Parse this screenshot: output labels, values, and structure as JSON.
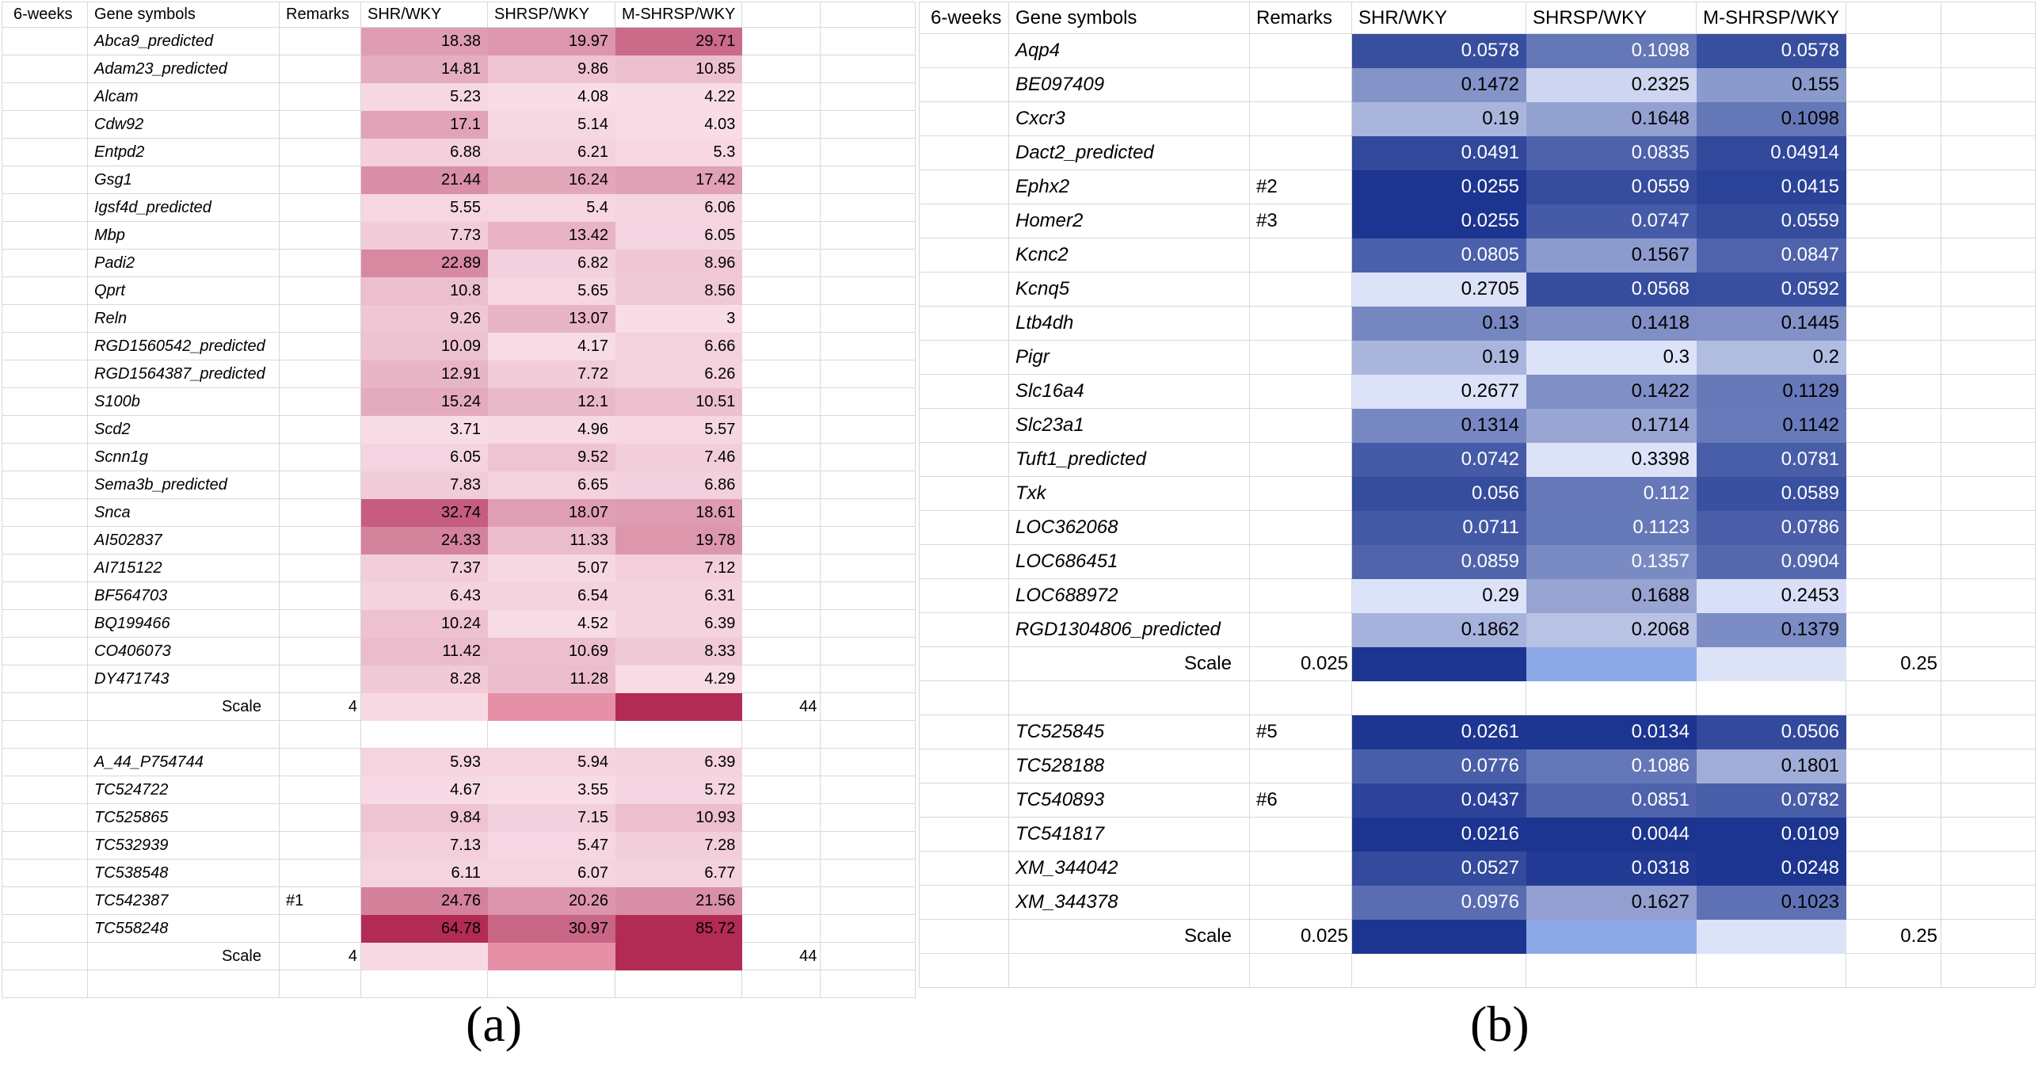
{
  "chart_data": [
    {
      "type": "heatmap",
      "panel_label": "(a)",
      "palette": "pink-red",
      "headers": [
        "6-weeks",
        "Gene symbols",
        "Remarks",
        "SHR/WKY",
        "SHRSP/WKY",
        "M-SHRSP/WKY"
      ],
      "scale": {
        "label": "Scale",
        "min": 4,
        "max": 44,
        "min_label": "4",
        "max_label": "44",
        "min_color": "#f8dde7",
        "max_color": "#b22b55",
        "legend_colors": [
          "#f7d9e3",
          "#e690a8",
          "#b22b55"
        ]
      },
      "blocks": [
        {
          "rows": [
            {
              "gene": "Abca9_predicted",
              "values": [
                18.38,
                19.97,
                29.71
              ]
            },
            {
              "gene": "Adam23_predicted",
              "values": [
                14.81,
                9.86,
                10.85
              ]
            },
            {
              "gene": "Alcam",
              "values": [
                5.23,
                4.08,
                4.22
              ]
            },
            {
              "gene": "Cdw92",
              "values": [
                17.1,
                5.14,
                4.03
              ]
            },
            {
              "gene": "Entpd2",
              "values": [
                6.88,
                6.21,
                5.3
              ]
            },
            {
              "gene": "Gsg1",
              "values": [
                21.44,
                16.24,
                17.42
              ]
            },
            {
              "gene": "Igsf4d_predicted",
              "values": [
                5.55,
                5.4,
                6.06
              ]
            },
            {
              "gene": "Mbp",
              "values": [
                7.73,
                13.42,
                6.05
              ]
            },
            {
              "gene": "Padi2",
              "values": [
                22.89,
                6.82,
                8.96
              ]
            },
            {
              "gene": "Qprt",
              "values": [
                10.8,
                5.65,
                8.56
              ]
            },
            {
              "gene": "Reln",
              "values": [
                9.26,
                13.07,
                3
              ]
            },
            {
              "gene": "RGD1560542_predicted",
              "values": [
                10.09,
                4.17,
                6.66
              ]
            },
            {
              "gene": "RGD1564387_predicted",
              "values": [
                12.91,
                7.72,
                6.26
              ]
            },
            {
              "gene": "S100b",
              "values": [
                15.24,
                12.1,
                10.51
              ]
            },
            {
              "gene": "Scd2",
              "values": [
                3.71,
                4.96,
                5.57
              ]
            },
            {
              "gene": "Scnn1g",
              "values": [
                6.05,
                9.52,
                7.46
              ]
            },
            {
              "gene": "Sema3b_predicted",
              "values": [
                7.83,
                6.65,
                6.86
              ]
            },
            {
              "gene": "Snca",
              "values": [
                32.74,
                18.07,
                18.61
              ]
            },
            {
              "gene": "AI502837",
              "values": [
                24.33,
                11.33,
                19.78
              ]
            },
            {
              "gene": "AI715122",
              "values": [
                7.37,
                5.07,
                7.12
              ]
            },
            {
              "gene": "BF564703",
              "values": [
                6.43,
                6.54,
                6.31
              ]
            },
            {
              "gene": "BQ199466",
              "values": [
                10.24,
                4.52,
                6.39
              ]
            },
            {
              "gene": "CO406073",
              "values": [
                11.42,
                10.69,
                8.33
              ]
            },
            {
              "gene": "DY471743",
              "values": [
                8.28,
                11.28,
                4.29
              ]
            }
          ]
        },
        {
          "rows": [
            {
              "gene": "A_44_P754744",
              "values": [
                5.93,
                5.94,
                6.39
              ]
            },
            {
              "gene": "TC524722",
              "values": [
                4.67,
                3.55,
                5.72
              ]
            },
            {
              "gene": "TC525865",
              "values": [
                9.84,
                7.15,
                10.93
              ]
            },
            {
              "gene": "TC532939",
              "values": [
                7.13,
                5.47,
                7.28
              ]
            },
            {
              "gene": "TC538548",
              "values": [
                6.11,
                6.07,
                6.77
              ]
            },
            {
              "gene": "TC542387",
              "remark": "#1",
              "values": [
                24.76,
                20.26,
                21.56
              ]
            },
            {
              "gene": "TC558248",
              "values": [
                64.78,
                30.97,
                85.72
              ]
            }
          ]
        }
      ]
    },
    {
      "type": "heatmap",
      "panel_label": "(b)",
      "palette": "blue",
      "headers": [
        "6-weeks",
        "Gene symbols",
        "Remarks",
        "SHR/WKY",
        "SHRSP/WKY",
        "M-SHRSP/WKY"
      ],
      "scale": {
        "label": "Scale",
        "min": 0.025,
        "max": 0.25,
        "min_label": "0.025",
        "max_label": "0.25",
        "min_color": "#1c3590",
        "max_color": "#dce3f8",
        "legend_colors": [
          "#1c3590",
          "#8ea9e8",
          "#dce3f8"
        ]
      },
      "blocks": [
        {
          "rows": [
            {
              "gene": "Aqp4",
              "values": [
                0.0578,
                0.1098,
                0.0578
              ],
              "white": [
                1,
                1,
                1
              ]
            },
            {
              "gene": "BE097409",
              "values": [
                0.1472,
                0.2325,
                0.155
              ],
              "white": [
                0,
                0,
                0
              ]
            },
            {
              "gene": "Cxcr3",
              "values": [
                0.19,
                0.1648,
                0.1098
              ],
              "white": [
                0,
                0,
                0
              ]
            },
            {
              "gene": "Dact2_predicted",
              "values": [
                0.0491,
                0.0835,
                0.04914
              ],
              "white": [
                1,
                1,
                1
              ]
            },
            {
              "gene": "Ephx2",
              "remark": "#2",
              "values": [
                0.0255,
                0.0559,
                0.0415
              ],
              "white": [
                1,
                1,
                1
              ]
            },
            {
              "gene": "Homer2",
              "remark": "#3",
              "values": [
                0.0255,
                0.0747,
                0.0559
              ],
              "white": [
                1,
                1,
                1
              ]
            },
            {
              "gene": "Kcnc2",
              "values": [
                0.0805,
                0.1567,
                0.0847
              ],
              "white": [
                1,
                0,
                1
              ]
            },
            {
              "gene": "Kcnq5",
              "values": [
                0.2705,
                0.0568,
                0.0592
              ],
              "white": [
                0,
                1,
                1
              ]
            },
            {
              "gene": "Ltb4dh",
              "values": [
                0.13,
                0.1418,
                0.1445
              ],
              "white": [
                0,
                0,
                0
              ]
            },
            {
              "gene": "Pigr",
              "values": [
                0.19,
                0.3,
                0.2
              ],
              "white": [
                0,
                0,
                0
              ]
            },
            {
              "gene": "Slc16a4",
              "values": [
                0.2677,
                0.1422,
                0.1129
              ],
              "white": [
                0,
                0,
                0
              ]
            },
            {
              "gene": "Slc23a1",
              "values": [
                0.1314,
                0.1714,
                0.1142
              ],
              "white": [
                0,
                0,
                0
              ]
            },
            {
              "gene": "Tuft1_predicted",
              "values": [
                0.0742,
                0.3398,
                0.0781
              ],
              "white": [
                1,
                0,
                1
              ]
            },
            {
              "gene": "Txk",
              "values": [
                0.056,
                0.112,
                0.0589
              ],
              "white": [
                1,
                1,
                1
              ]
            },
            {
              "gene": "LOC362068",
              "values": [
                0.0711,
                0.1123,
                0.0786
              ],
              "white": [
                1,
                1,
                1
              ]
            },
            {
              "gene": "LOC686451",
              "values": [
                0.0859,
                0.1357,
                0.0904
              ],
              "white": [
                1,
                1,
                1
              ]
            },
            {
              "gene": "LOC688972",
              "values": [
                0.29,
                0.1688,
                0.2453
              ],
              "white": [
                0,
                0,
                0
              ]
            },
            {
              "gene": "RGD1304806_predicted",
              "values": [
                0.1862,
                0.2068,
                0.1379
              ],
              "white": [
                0,
                0,
                0
              ]
            }
          ]
        },
        {
          "rows": [
            {
              "gene": "TC525845",
              "remark": "#5",
              "values": [
                0.0261,
                0.0134,
                0.0506
              ],
              "white": [
                1,
                1,
                1
              ]
            },
            {
              "gene": "TC528188",
              "values": [
                0.0776,
                0.1086,
                0.1801
              ],
              "white": [
                1,
                1,
                0
              ]
            },
            {
              "gene": "TC540893",
              "remark": "#6",
              "values": [
                0.0437,
                0.0851,
                0.0782
              ],
              "white": [
                1,
                1,
                1
              ]
            },
            {
              "gene": "TC541817",
              "values": [
                0.0216,
                0.0044,
                0.0109
              ],
              "white": [
                1,
                1,
                1
              ]
            },
            {
              "gene": "XM_344042",
              "values": [
                0.0527,
                0.0318,
                0.0248
              ],
              "white": [
                1,
                1,
                1
              ]
            },
            {
              "gene": "XM_344378",
              "values": [
                0.0976,
                0.1627,
                0.1023
              ],
              "white": [
                1,
                0,
                0
              ]
            }
          ]
        }
      ]
    }
  ]
}
